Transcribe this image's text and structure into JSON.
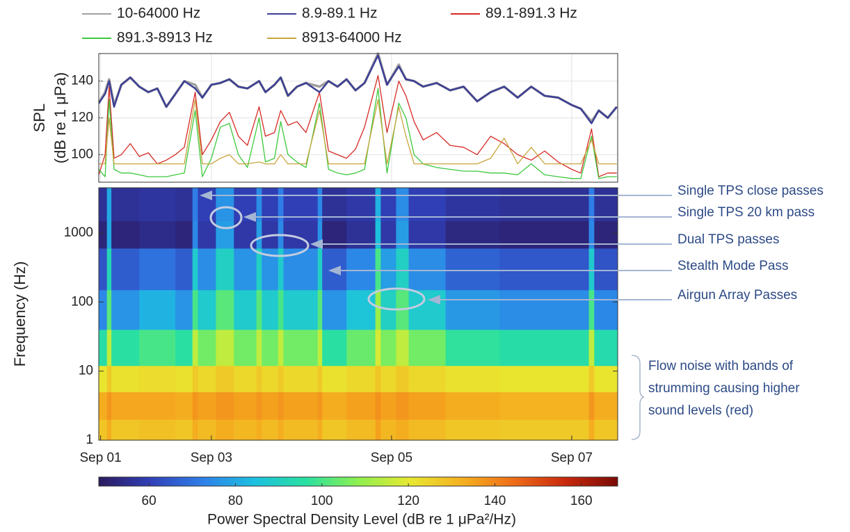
{
  "chart_data": [
    {
      "type": "line",
      "ylabel": [
        "SPL",
        "(dB re 1 μPa)"
      ],
      "xlim": [
        1.75,
        7.51
      ],
      "ylim": [
        85,
        155
      ],
      "yticks": [
        100,
        120,
        140
      ],
      "grid": true,
      "x": [
        1.75,
        1.82,
        1.865,
        1.92,
        2.0,
        2.1,
        2.2,
        2.3,
        2.4,
        2.5,
        2.6,
        2.7,
        2.82,
        2.9,
        3.0,
        3.1,
        3.2,
        3.3,
        3.4,
        3.53,
        3.6,
        3.7,
        3.77,
        3.85,
        3.95,
        4.05,
        4.2,
        4.3,
        4.4,
        4.5,
        4.6,
        4.7,
        4.85,
        4.95,
        5.08,
        5.16,
        5.25,
        5.35,
        5.5,
        5.65,
        5.8,
        5.95,
        6.1,
        6.25,
        6.4,
        6.55,
        6.7,
        6.85,
        7.0,
        7.1,
        7.22,
        7.3,
        7.4,
        7.5
      ],
      "series": [
        {
          "name": "10-64000 Hz",
          "color": "#a0a0a0",
          "width": 3.5,
          "values": [
            128,
            134,
            141,
            127,
            138,
            142,
            137,
            134,
            136,
            126,
            133,
            140,
            138,
            131,
            138,
            139,
            141,
            137,
            136,
            140,
            134,
            138,
            142,
            132,
            137,
            139,
            137,
            140,
            137,
            141,
            135,
            139,
            155,
            138,
            149,
            141,
            140,
            137,
            139,
            135,
            137,
            129,
            134,
            137,
            131,
            137,
            132,
            131,
            127,
            125,
            118,
            124,
            120,
            126
          ]
        },
        {
          "name": "8.9-89.1 Hz",
          "color": "#3d3f94",
          "width": 2.5,
          "values": [
            128,
            133,
            140,
            126,
            138,
            142,
            137,
            134,
            136,
            126,
            133,
            140,
            136,
            131,
            138,
            139,
            141,
            137,
            136,
            140,
            134,
            138,
            142,
            132,
            137,
            139,
            134,
            140,
            137,
            141,
            135,
            139,
            154,
            138,
            148,
            141,
            140,
            137,
            139,
            135,
            137,
            129,
            134,
            137,
            131,
            137,
            132,
            131,
            127,
            125,
            117,
            124,
            120,
            126
          ]
        },
        {
          "name": "89.1-891.3 Hz",
          "color": "#d62a25",
          "width": 1.3,
          "values": [
            89,
            100,
            137,
            98,
            100,
            106,
            99,
            101,
            95,
            97,
            100,
            104,
            134,
            100,
            108,
            118,
            123,
            110,
            105,
            126,
            110,
            112,
            124,
            116,
            118,
            112,
            134,
            102,
            100,
            98,
            103,
            115,
            143,
            112,
            140,
            132,
            118,
            108,
            112,
            105,
            104,
            100,
            110,
            106,
            100,
            97,
            102,
            96,
            92,
            90,
            114,
            88,
            90,
            90
          ]
        },
        {
          "name": "891.3-8913 Hz",
          "color": "#3cc83c",
          "width": 1.3,
          "values": [
            92,
            88,
            130,
            92,
            90,
            90,
            89,
            88,
            88,
            88,
            89,
            90,
            124,
            88,
            98,
            115,
            117,
            100,
            93,
            120,
            96,
            98,
            118,
            100,
            96,
            93,
            128,
            92,
            90,
            89,
            90,
            92,
            136,
            90,
            128,
            120,
            100,
            95,
            93,
            92,
            91,
            91,
            90,
            90,
            89,
            95,
            89,
            88,
            87,
            87,
            110,
            87,
            88,
            88
          ]
        },
        {
          "name": "8913-64000 Hz",
          "color": "#c9a43c",
          "width": 1.3,
          "values": [
            95,
            95,
            120,
            95,
            95,
            95,
            95,
            95,
            95,
            95,
            95,
            95,
            130,
            95,
            95,
            98,
            100,
            95,
            95,
            96,
            95,
            95,
            100,
            95,
            95,
            95,
            124,
            95,
            95,
            95,
            95,
            95,
            130,
            95,
            126,
            110,
            95,
            95,
            95,
            95,
            95,
            95,
            98,
            109,
            95,
            104,
            95,
            95,
            95,
            95,
            108,
            95,
            95,
            95
          ]
        }
      ]
    },
    {
      "type": "heatmap",
      "ylabel": "Frequency (Hz)",
      "log_y": true,
      "xlim": [
        1.75,
        7.51
      ],
      "xticks": [
        {
          "value": 1.77,
          "label": "Sep 01"
        },
        {
          "value": 3,
          "label": "Sep 03"
        },
        {
          "value": 5,
          "label": "Sep 05"
        },
        {
          "value": 7,
          "label": "Sep 07"
        }
      ],
      "ylim": [
        1,
        4500
      ],
      "yticks": [
        1,
        10,
        100,
        1000
      ],
      "x_bins": [
        1.75,
        1.84,
        1.89,
        2.2,
        2.6,
        2.79,
        2.85,
        3.05,
        3.15,
        3.25,
        3.5,
        3.56,
        3.74,
        3.8,
        4.18,
        4.23,
        4.5,
        4.82,
        4.88,
        5.05,
        5.19,
        5.6,
        6.2,
        7.19,
        7.25,
        7.51
      ],
      "y_bins": [
        1,
        2,
        5,
        12,
        40,
        150,
        600,
        1500,
        4500
      ],
      "z": [
        [
          128,
          133,
          128,
          129,
          128,
          133,
          130,
          133,
          133,
          131,
          133,
          130,
          133,
          130,
          133,
          128,
          130,
          135,
          131,
          133,
          130,
          128,
          127,
          133,
          128
        ],
        [
          133,
          137,
          134,
          134,
          133,
          137,
          135,
          137,
          137,
          135,
          137,
          135,
          137,
          135,
          137,
          133,
          135,
          138,
          135,
          137,
          135,
          133,
          132,
          137,
          133
        ],
        [
          121,
          127,
          122,
          123,
          122,
          127,
          124,
          127,
          127,
          124,
          127,
          124,
          127,
          124,
          127,
          122,
          124,
          128,
          124,
          127,
          124,
          122,
          121,
          127,
          121
        ],
        [
          95,
          115,
          96,
          100,
          96,
          115,
          105,
          115,
          115,
          105,
          115,
          105,
          115,
          105,
          115,
          96,
          104,
          118,
          106,
          115,
          105,
          97,
          95,
          115,
          94
        ],
        [
          74,
          102,
          76,
          82,
          76,
          100,
          88,
          102,
          102,
          88,
          102,
          88,
          100,
          88,
          102,
          76,
          86,
          110,
          90,
          102,
          88,
          77,
          75,
          100,
          74
        ],
        [
          64,
          92,
          66,
          70,
          66,
          88,
          75,
          90,
          90,
          76,
          90,
          76,
          88,
          75,
          90,
          66,
          74,
          100,
          78,
          90,
          75,
          67,
          65,
          88,
          64
        ],
        [
          52,
          80,
          52,
          54,
          52,
          74,
          58,
          78,
          78,
          58,
          78,
          58,
          74,
          58,
          76,
          52,
          56,
          85,
          58,
          78,
          58,
          53,
          52,
          74,
          52
        ],
        [
          56,
          80,
          56,
          57,
          56,
          72,
          60,
          76,
          76,
          60,
          75,
          60,
          72,
          60,
          74,
          56,
          58,
          82,
          60,
          75,
          60,
          57,
          56,
          72,
          56
        ]
      ],
      "colormap": [
        "#2b1a5e",
        "#3040b8",
        "#2f7fe8",
        "#1cc0e0",
        "#2ae0a0",
        "#8ef050",
        "#e8e830",
        "#f5b020",
        "#ef6d18",
        "#c8280c",
        "#7a0a04"
      ],
      "colorbar": {
        "label": "Power Spectral Density Level (dB re 1 μPa²/Hz)",
        "lim": [
          48.4,
          168.4
        ],
        "ticks": [
          60,
          80,
          100,
          120,
          140,
          160
        ]
      },
      "annotations": [
        "Single TPS close passes",
        "Single TPS 20 km pass",
        "Dual TPS passes",
        "Stealth Mode Pass",
        "Airgun Array Passes"
      ],
      "bracket_note": "Flow noise with bands of strumming causing higher sound levels (red)"
    }
  ]
}
